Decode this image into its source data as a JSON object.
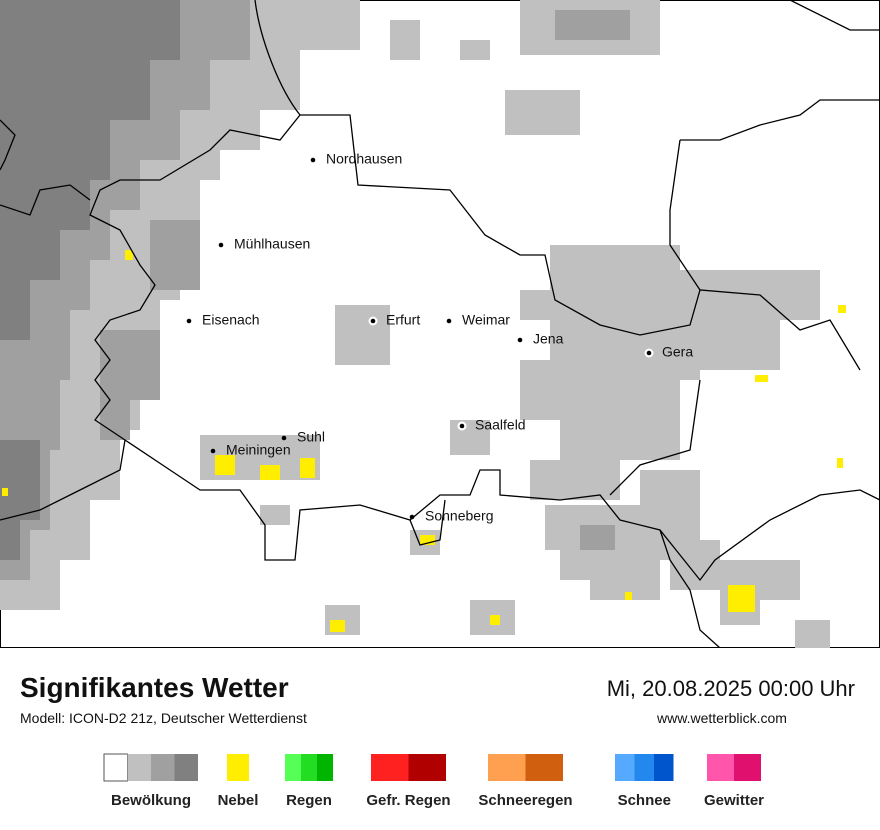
{
  "map": {
    "cities": [
      "Nordhausen",
      "Mühlhausen",
      "Eisenach",
      "Erfurt",
      "Weimar",
      "Jena",
      "Gera",
      "Saalfeld",
      "Suhl",
      "Meiningen",
      "Sonneberg"
    ]
  },
  "header": {
    "title": "Signifikantes Wetter",
    "model": "Modell: ICON-D2 21z, Deutscher Wetterdienst",
    "date": "Mi, 20.08.2025 00:00 Uhr",
    "website": "www.wetterblick.com"
  },
  "legend": [
    {
      "label": "Bewölkung",
      "colors": [
        "#ffffff",
        "#c0c0c0",
        "#a0a0a0",
        "#808080"
      ]
    },
    {
      "label": "Nebel",
      "colors": [
        "#ffee00"
      ]
    },
    {
      "label": "Regen",
      "colors": [
        "#55ff55",
        "#22dd22",
        "#00b400"
      ]
    },
    {
      "label": "Gefr. Regen",
      "colors": [
        "#ff2020",
        "#b00000"
      ]
    },
    {
      "label": "Schneeregen",
      "colors": [
        "#ffa050",
        "#d06010"
      ]
    },
    {
      "label": "Schnee",
      "colors": [
        "#55aaff",
        "#2288ee",
        "#0055cc"
      ]
    },
    {
      "label": "Gewitter",
      "colors": [
        "#ff55aa",
        "#e0106f"
      ]
    }
  ]
}
